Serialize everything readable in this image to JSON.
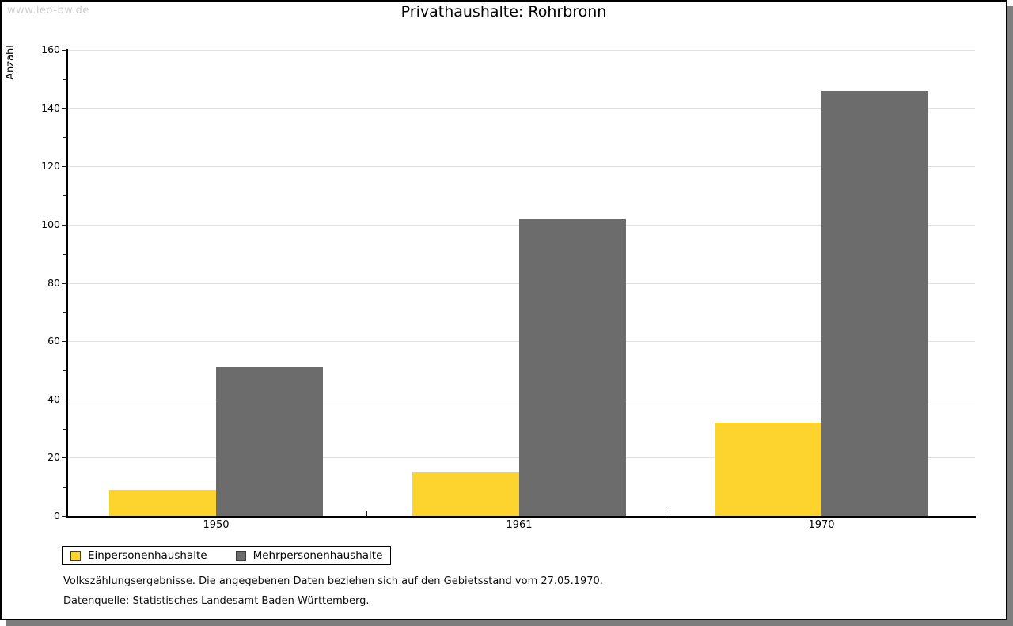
{
  "watermark": "www.leo-bw.de",
  "title": "Privathaushalte: Rohrbronn",
  "footnotes": [
    "Volkszählungsergebnisse. Die angegebenen Daten beziehen sich auf den Gebietsstand vom 27.05.1970.",
    "Datenquelle: Statistisches Landesamt Baden-Württemberg."
  ],
  "chart_data": {
    "type": "bar",
    "title": "Privathaushalte: Rohrbronn",
    "xlabel": "",
    "ylabel": "Anzahl",
    "categories": [
      "1950",
      "1961",
      "1970"
    ],
    "series": [
      {
        "name": "Einpersonenhaushalte",
        "color": "#FDD32E",
        "values": [
          9,
          15,
          32
        ]
      },
      {
        "name": "Mehrpersonenhaushalte",
        "color": "#6C6C6C",
        "values": [
          51,
          102,
          146
        ]
      }
    ],
    "ylim": [
      0,
      160
    ],
    "yticks": [
      0,
      20,
      40,
      60,
      80,
      100,
      120,
      140,
      160
    ],
    "ytick_step": 20,
    "yminor_step": 10,
    "grid": true,
    "legend_position": "bottom-left",
    "colors": {
      "grid": "#e2e2e2",
      "axis": "#000000",
      "shadow": "#7d7d7d",
      "watermark": "#cfcfcf"
    }
  }
}
